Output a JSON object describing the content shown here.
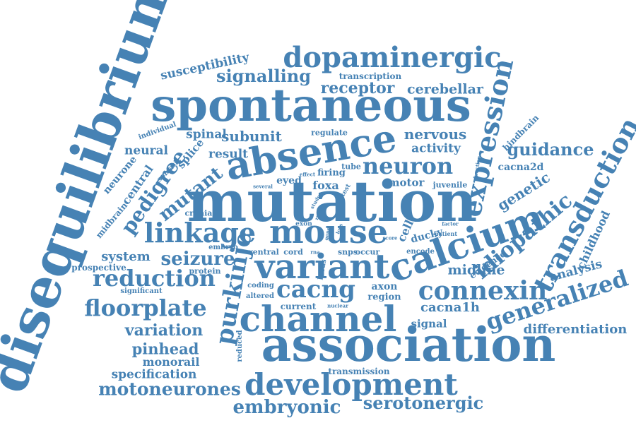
{
  "color": "#4682b4",
  "words": [
    "disequilibrium",
    "mutation",
    "spontaneous",
    "association",
    "absence",
    "channel",
    "mouse",
    "calcium",
    "variant",
    "development",
    "dopaminergic",
    "expression",
    "linkage",
    "purkinje",
    "transduction",
    "connexin",
    "cacng",
    "generalized",
    "floorplate",
    "idiopathic",
    "reduction",
    "pedigree",
    "neuron",
    "seizure",
    "embryonic",
    "motoneurones",
    "guidance",
    "signalling",
    "receptor",
    "mutant",
    "serotonergic",
    "variation",
    "pinhead",
    "nervous",
    "subunit",
    "genetic",
    "cerebellar",
    "susceptibility",
    "differentiation",
    "cacna1h",
    "midline",
    "activity",
    "analysis",
    "childhood",
    "spinal",
    "neural",
    "central",
    "result",
    "splice",
    "system",
    "specification",
    "monorail",
    "cell",
    "motor",
    "foxa",
    "eyed",
    "firing",
    "axon",
    "region",
    "current",
    "signal",
    "transmission",
    "cacna2d",
    "hindbrain",
    "juvenile",
    "ducky",
    "evidence",
    "transcription",
    "regulate",
    "tube",
    "prospective",
    "protein",
    "embryo",
    "cranial",
    "midbrain",
    "neurone",
    "individual",
    "significant",
    "somatic",
    "ventral",
    "cord",
    "coding",
    "altered",
    "reduced",
    "snps",
    "occur",
    "encode",
    "patient",
    "test",
    "locus",
    "exon",
    "nuclear",
    "score",
    "factor",
    "function",
    "several",
    "effect",
    "study",
    "loss",
    "gene",
    "rnase",
    "rna"
  ]
}
